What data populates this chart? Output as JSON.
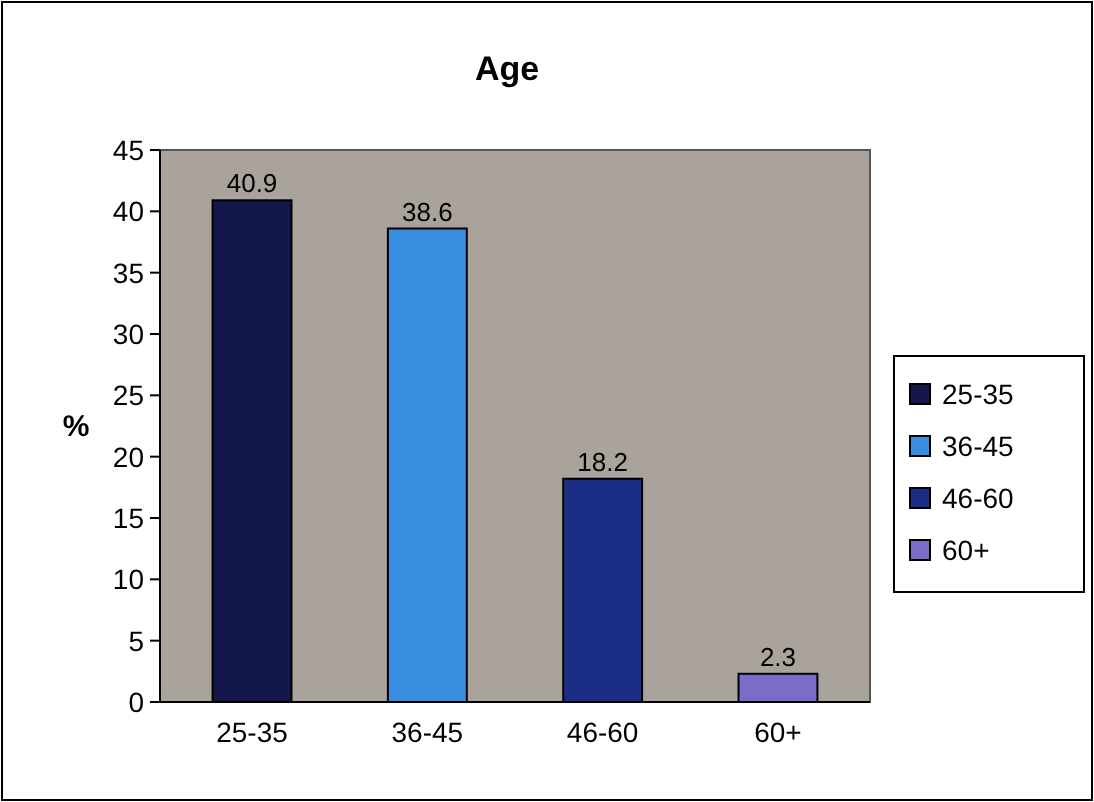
{
  "chart_data": {
    "type": "bar",
    "title": "Age",
    "ylabel": "%",
    "categories": [
      "25-35",
      "36-45",
      "46-60",
      "60+"
    ],
    "series": [
      {
        "name": "25-35",
        "color": "#14174a",
        "values": [
          40.9,
          null,
          null,
          null
        ]
      },
      {
        "name": "36-45",
        "color": "#3a8ee0",
        "values": [
          null,
          38.6,
          null,
          null
        ]
      },
      {
        "name": "46-60",
        "color": "#1c2d86",
        "values": [
          null,
          null,
          18.2,
          null
        ]
      },
      {
        "name": "60+",
        "color": "#7a6cc8",
        "values": [
          null,
          null,
          null,
          2.3
        ]
      }
    ],
    "data_labels": true,
    "ylim": [
      0,
      45
    ],
    "yticks": [
      0,
      5,
      10,
      15,
      20,
      25,
      30,
      35,
      40,
      45
    ],
    "legend": "right"
  }
}
